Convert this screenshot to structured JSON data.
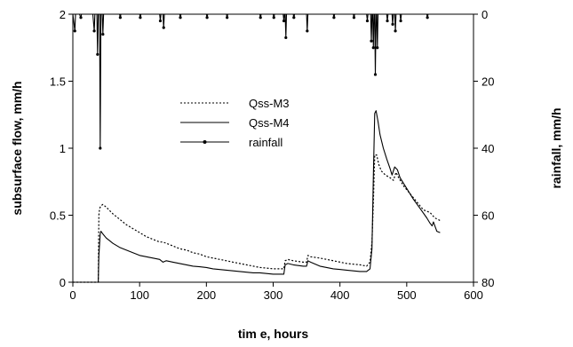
{
  "chart_data": {
    "type": "line",
    "xlabel": "tim e, hours",
    "ylabel": "subsurface flow, mm/h",
    "y2label": "rainfall, mm/h",
    "xlim": [
      0,
      600
    ],
    "ylim": [
      0,
      2
    ],
    "y2lim": [
      80,
      0
    ],
    "y2_inverted": true,
    "x_ticks": [
      "0",
      "100",
      "200",
      "300",
      "400",
      "500",
      "600"
    ],
    "y_ticks": [
      "0",
      "0.5",
      "1",
      "1.5",
      "2"
    ],
    "y2_ticks": [
      "0",
      "20",
      "40",
      "60",
      "80"
    ],
    "grid": false,
    "legend": {
      "placement": "upper-center",
      "entries": [
        "Qss-M3",
        "Qss-M4",
        "rainfall"
      ]
    },
    "series": [
      {
        "name": "Qss-M3",
        "axis": "left",
        "style": "dotted",
        "points": [
          [
            0,
            0
          ],
          [
            38,
            0
          ],
          [
            39,
            0.5
          ],
          [
            40,
            0.55
          ],
          [
            42,
            0.57
          ],
          [
            45,
            0.58
          ],
          [
            50,
            0.56
          ],
          [
            60,
            0.51
          ],
          [
            70,
            0.47
          ],
          [
            80,
            0.43
          ],
          [
            90,
            0.4
          ],
          [
            100,
            0.37
          ],
          [
            110,
            0.34
          ],
          [
            120,
            0.32
          ],
          [
            130,
            0.3
          ],
          [
            135,
            0.3
          ],
          [
            140,
            0.29
          ],
          [
            150,
            0.27
          ],
          [
            160,
            0.25
          ],
          [
            170,
            0.24
          ],
          [
            180,
            0.22
          ],
          [
            190,
            0.21
          ],
          [
            200,
            0.19
          ],
          [
            210,
            0.18
          ],
          [
            220,
            0.17
          ],
          [
            230,
            0.16
          ],
          [
            240,
            0.15
          ],
          [
            250,
            0.14
          ],
          [
            260,
            0.13
          ],
          [
            270,
            0.12
          ],
          [
            280,
            0.11
          ],
          [
            290,
            0.105
          ],
          [
            300,
            0.1
          ],
          [
            310,
            0.1
          ],
          [
            316,
            0.1
          ],
          [
            318,
            0.16
          ],
          [
            322,
            0.17
          ],
          [
            330,
            0.16
          ],
          [
            345,
            0.15
          ],
          [
            350,
            0.15
          ],
          [
            352,
            0.2
          ],
          [
            356,
            0.19
          ],
          [
            370,
            0.18
          ],
          [
            390,
            0.16
          ],
          [
            410,
            0.14
          ],
          [
            430,
            0.13
          ],
          [
            440,
            0.12
          ],
          [
            445,
            0.15
          ],
          [
            448,
            0.3
          ],
          [
            450,
            0.6
          ],
          [
            452,
            0.95
          ],
          [
            455,
            0.95
          ],
          [
            458,
            0.88
          ],
          [
            462,
            0.83
          ],
          [
            468,
            0.8
          ],
          [
            475,
            0.78
          ],
          [
            480,
            0.76
          ],
          [
            484,
            0.82
          ],
          [
            488,
            0.78
          ],
          [
            495,
            0.72
          ],
          [
            505,
            0.66
          ],
          [
            515,
            0.6
          ],
          [
            525,
            0.54
          ],
          [
            535,
            0.52
          ],
          [
            542,
            0.48
          ],
          [
            550,
            0.46
          ]
        ]
      },
      {
        "name": "Qss-M4",
        "axis": "left",
        "style": "solid",
        "points": [
          [
            0,
            0
          ],
          [
            38,
            0
          ],
          [
            39,
            0.2
          ],
          [
            41,
            0.36
          ],
          [
            42,
            0.38
          ],
          [
            45,
            0.36
          ],
          [
            50,
            0.33
          ],
          [
            60,
            0.29
          ],
          [
            70,
            0.26
          ],
          [
            80,
            0.24
          ],
          [
            90,
            0.22
          ],
          [
            100,
            0.2
          ],
          [
            110,
            0.19
          ],
          [
            120,
            0.18
          ],
          [
            130,
            0.17
          ],
          [
            135,
            0.15
          ],
          [
            140,
            0.16
          ],
          [
            150,
            0.15
          ],
          [
            160,
            0.14
          ],
          [
            170,
            0.13
          ],
          [
            180,
            0.12
          ],
          [
            190,
            0.115
          ],
          [
            200,
            0.11
          ],
          [
            210,
            0.1
          ],
          [
            220,
            0.095
          ],
          [
            230,
            0.09
          ],
          [
            240,
            0.085
          ],
          [
            250,
            0.08
          ],
          [
            260,
            0.075
          ],
          [
            270,
            0.07
          ],
          [
            280,
            0.07
          ],
          [
            290,
            0.065
          ],
          [
            300,
            0.06
          ],
          [
            310,
            0.06
          ],
          [
            316,
            0.06
          ],
          [
            318,
            0.13
          ],
          [
            322,
            0.14
          ],
          [
            330,
            0.13
          ],
          [
            345,
            0.12
          ],
          [
            350,
            0.12
          ],
          [
            352,
            0.16
          ],
          [
            356,
            0.15
          ],
          [
            370,
            0.12
          ],
          [
            390,
            0.1
          ],
          [
            410,
            0.09
          ],
          [
            430,
            0.08
          ],
          [
            440,
            0.08
          ],
          [
            445,
            0.1
          ],
          [
            448,
            0.25
          ],
          [
            450,
            0.8
          ],
          [
            452,
            1.26
          ],
          [
            454,
            1.28
          ],
          [
            457,
            1.2
          ],
          [
            460,
            1.1
          ],
          [
            465,
            1.0
          ],
          [
            470,
            0.92
          ],
          [
            475,
            0.85
          ],
          [
            478,
            0.8
          ],
          [
            482,
            0.86
          ],
          [
            486,
            0.84
          ],
          [
            490,
            0.78
          ],
          [
            500,
            0.7
          ],
          [
            510,
            0.62
          ],
          [
            520,
            0.55
          ],
          [
            530,
            0.48
          ],
          [
            535,
            0.44
          ],
          [
            538,
            0.42
          ],
          [
            540,
            0.45
          ],
          [
            545,
            0.38
          ],
          [
            550,
            0.37
          ]
        ]
      },
      {
        "name": "rainfall",
        "axis": "right",
        "style": "solid-markers",
        "points": [
          [
            0,
            0
          ],
          [
            3,
            5
          ],
          [
            4,
            0
          ],
          [
            10,
            0
          ],
          [
            12,
            1
          ],
          [
            13,
            0
          ],
          [
            20,
            0
          ],
          [
            30,
            0
          ],
          [
            32,
            5
          ],
          [
            33,
            0
          ],
          [
            36,
            0
          ],
          [
            37,
            12
          ],
          [
            38,
            0
          ],
          [
            40,
            0
          ],
          [
            41,
            40
          ],
          [
            42,
            0
          ],
          [
            44,
            0
          ],
          [
            45,
            6
          ],
          [
            46,
            0
          ],
          [
            70,
            0
          ],
          [
            71,
            1
          ],
          [
            72,
            0
          ],
          [
            100,
            0
          ],
          [
            101,
            1
          ],
          [
            102,
            0
          ],
          [
            130,
            0
          ],
          [
            131,
            2
          ],
          [
            132,
            0
          ],
          [
            135,
            0
          ],
          [
            136,
            4
          ],
          [
            137,
            0
          ],
          [
            160,
            0
          ],
          [
            161,
            1
          ],
          [
            162,
            0
          ],
          [
            200,
            0
          ],
          [
            201,
            1
          ],
          [
            202,
            0
          ],
          [
            230,
            0
          ],
          [
            231,
            1
          ],
          [
            232,
            0
          ],
          [
            280,
            0
          ],
          [
            281,
            1
          ],
          [
            282,
            0
          ],
          [
            300,
            0
          ],
          [
            301,
            1
          ],
          [
            302,
            0
          ],
          [
            315,
            0
          ],
          [
            316,
            2
          ],
          [
            317,
            0
          ],
          [
            318,
            0
          ],
          [
            319,
            7
          ],
          [
            320,
            0
          ],
          [
            330,
            0
          ],
          [
            331,
            1
          ],
          [
            332,
            0
          ],
          [
            350,
            0
          ],
          [
            351,
            5
          ],
          [
            352,
            0
          ],
          [
            390,
            0
          ],
          [
            391,
            1
          ],
          [
            392,
            0
          ],
          [
            420,
            0
          ],
          [
            421,
            1
          ],
          [
            422,
            0
          ],
          [
            440,
            0
          ],
          [
            441,
            2
          ],
          [
            442,
            0
          ],
          [
            446,
            0
          ],
          [
            447,
            8
          ],
          [
            448,
            0
          ],
          [
            449,
            0
          ],
          [
            450,
            10
          ],
          [
            451,
            0
          ],
          [
            452,
            0
          ],
          [
            453,
            18
          ],
          [
            454,
            0
          ],
          [
            455,
            0
          ],
          [
            456,
            10
          ],
          [
            457,
            0
          ],
          [
            470,
            0
          ],
          [
            471,
            2
          ],
          [
            472,
            0
          ],
          [
            478,
            0
          ],
          [
            479,
            3
          ],
          [
            480,
            0
          ],
          [
            482,
            0
          ],
          [
            483,
            5
          ],
          [
            484,
            0
          ],
          [
            490,
            0
          ],
          [
            491,
            2
          ],
          [
            492,
            0
          ],
          [
            530,
            0
          ],
          [
            531,
            1
          ],
          [
            532,
            0
          ],
          [
            550,
            0
          ]
        ]
      }
    ]
  }
}
